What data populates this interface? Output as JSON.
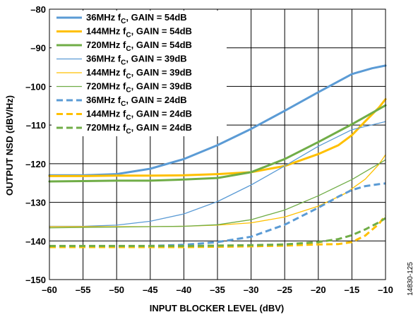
{
  "figure_id": "14830-125",
  "chart_data": {
    "type": "line",
    "title": "",
    "xlabel": "INPUT BLOCKER LEVEL (dBV)",
    "ylabel": "OUTPUT NSD (dBV/Hz)",
    "xlim": [
      -60,
      -10
    ],
    "ylim": [
      -150,
      -80
    ],
    "xticks": [
      -60,
      -55,
      -50,
      -45,
      -40,
      -35,
      -30,
      -25,
      -20,
      -15,
      -10
    ],
    "yticks": [
      -150,
      -140,
      -130,
      -120,
      -110,
      -100,
      -90,
      -80
    ],
    "xtick_labels": [
      "–60",
      "–55",
      "–50",
      "–45",
      "–40",
      "–35",
      "–30",
      "–25",
      "–20",
      "–15",
      "–10"
    ],
    "ytick_labels": [
      "–150",
      "–140",
      "–130",
      "–120",
      "–110",
      "–100",
      "–90",
      "–80"
    ],
    "grid": true,
    "legend_position": "top-left",
    "series": [
      {
        "name": "36MHz f",
        "sub": "C",
        "rest": ", GAIN = 54dB",
        "color": "#5b9bd5",
        "width": "thick",
        "style": "solid",
        "x": [
          -60,
          -55,
          -50,
          -45,
          -40,
          -35,
          -30,
          -25,
          -20,
          -15,
          -12,
          -10
        ],
        "y": [
          -123,
          -123,
          -122.7,
          -121.3,
          -118.8,
          -115.2,
          -111,
          -106.3,
          -101.5,
          -96.8,
          -95.3,
          -94.6
        ]
      },
      {
        "name": "144MHz f",
        "sub": "C",
        "rest": ", GAIN = 54dB",
        "color": "#ffc000",
        "width": "thick",
        "style": "solid",
        "x": [
          -60,
          -55,
          -50,
          -45,
          -40,
          -35,
          -30,
          -25,
          -20,
          -17,
          -15,
          -13,
          -11,
          -10
        ],
        "y": [
          -123.2,
          -123.2,
          -123.1,
          -123.1,
          -123,
          -122.7,
          -122.2,
          -120.6,
          -117.5,
          -115.2,
          -112.6,
          -109,
          -105.5,
          -103.3
        ]
      },
      {
        "name": "720MHz f",
        "sub": "C",
        "rest": ", GAIN = 54dB",
        "color": "#70ad47",
        "width": "thick",
        "style": "solid",
        "x": [
          -60,
          -55,
          -50,
          -45,
          -40,
          -35,
          -30,
          -25,
          -20,
          -15,
          -10
        ],
        "y": [
          -124.6,
          -124.5,
          -124.4,
          -124.4,
          -124.1,
          -123.7,
          -122.2,
          -118.8,
          -114.4,
          -109.8,
          -104.9
        ]
      },
      {
        "name": "36MHz f",
        "sub": "C",
        "rest": ", GAIN = 39dB",
        "color": "#5b9bd5",
        "width": "thin",
        "style": "solid",
        "x": [
          -60,
          -55,
          -50,
          -45,
          -40,
          -35,
          -30,
          -25,
          -20,
          -15,
          -10
        ],
        "y": [
          -136.2,
          -136.2,
          -135.9,
          -134.9,
          -133,
          -129.8,
          -125.5,
          -120.6,
          -115.5,
          -111.2,
          -109.1
        ]
      },
      {
        "name": "144MHz f",
        "sub": "C",
        "rest": ", GAIN = 39dB",
        "color": "#ffc000",
        "width": "thin",
        "style": "solid",
        "x": [
          -60,
          -55,
          -50,
          -45,
          -40,
          -35,
          -30,
          -25,
          -20,
          -16,
          -13,
          -11,
          -10
        ],
        "y": [
          -136.3,
          -136.3,
          -136.3,
          -136.3,
          -136.2,
          -135.9,
          -135.3,
          -133.8,
          -131,
          -127.7,
          -124,
          -120.2,
          -117.7
        ]
      },
      {
        "name": "720MHz f",
        "sub": "C",
        "rest": ", GAIN = 39dB",
        "color": "#70ad47",
        "width": "thin",
        "style": "solid",
        "x": [
          -60,
          -55,
          -50,
          -45,
          -40,
          -35,
          -30,
          -25,
          -20,
          -15,
          -10
        ],
        "y": [
          -136.6,
          -136.5,
          -136.4,
          -136.3,
          -136.2,
          -135.8,
          -134.5,
          -132,
          -128.3,
          -124.1,
          -119
        ]
      },
      {
        "name": "36MHz f",
        "sub": "C",
        "rest": ", GAIN = 24dB",
        "color": "#5b9bd5",
        "width": "thick",
        "style": "dashed",
        "x": [
          -60,
          -55,
          -50,
          -45,
          -40,
          -35,
          -30,
          -25,
          -20,
          -17,
          -15,
          -13,
          -11,
          -10
        ],
        "y": [
          -141.4,
          -141.4,
          -141.4,
          -141.3,
          -141,
          -140.3,
          -138.9,
          -135.8,
          -131.4,
          -128.5,
          -126.8,
          -125.8,
          -125.3,
          -125.1
        ]
      },
      {
        "name": "144MHz f",
        "sub": "C",
        "rest": ", GAIN = 24dB",
        "color": "#ffc000",
        "width": "thick",
        "style": "dashed",
        "x": [
          -60,
          -55,
          -50,
          -45,
          -40,
          -35,
          -30,
          -25,
          -20,
          -17,
          -15,
          -13,
          -11,
          -10
        ],
        "y": [
          -141.6,
          -141.6,
          -141.6,
          -141.6,
          -141.6,
          -141.5,
          -141.4,
          -141.2,
          -140.9,
          -140.8,
          -140.3,
          -138.6,
          -135.6,
          -133.4
        ]
      },
      {
        "name": "720MHz f",
        "sub": "C",
        "rest": ", GAIN = 24dB",
        "color": "#70ad47",
        "width": "thick",
        "style": "dashed",
        "x": [
          -60,
          -55,
          -50,
          -45,
          -40,
          -35,
          -30,
          -25,
          -20,
          -17,
          -15,
          -13,
          -11,
          -10
        ],
        "y": [
          -141.3,
          -141.3,
          -141.3,
          -141.3,
          -141.3,
          -141.2,
          -141.1,
          -140.9,
          -140.3,
          -139.5,
          -138.5,
          -137,
          -135.2,
          -134.1
        ]
      }
    ]
  }
}
